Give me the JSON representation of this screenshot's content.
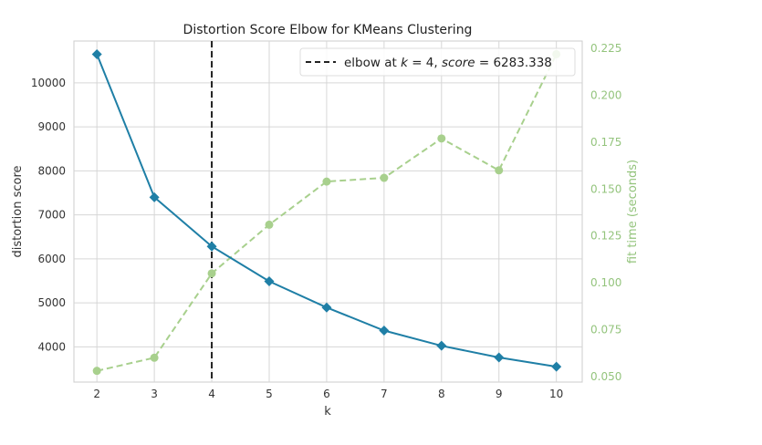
{
  "chart_data": {
    "type": "line",
    "title": "Distortion Score Elbow for KMeans Clustering",
    "xlabel": "k",
    "ylabel": "distortion score",
    "ylabel_right": "fit time (seconds)",
    "x": [
      2,
      3,
      4,
      5,
      6,
      7,
      8,
      9,
      10
    ],
    "xlim": [
      1.6,
      10.45
    ],
    "ylim": [
      3200,
      10950
    ],
    "ylim_right": [
      0.047,
      0.229
    ],
    "x_ticks": [
      "2",
      "3",
      "4",
      "5",
      "6",
      "7",
      "8",
      "9",
      "10"
    ],
    "y_ticks": [
      "4000",
      "5000",
      "6000",
      "7000",
      "8000",
      "9000",
      "10000"
    ],
    "y_ticks_right": [
      "0.050",
      "0.075",
      "0.100",
      "0.125",
      "0.150",
      "0.175",
      "0.200",
      "0.225"
    ],
    "grid": true,
    "series": [
      {
        "axis": "left",
        "values": [
          10650,
          7400,
          6283.338,
          5490,
          4895,
          4370,
          4025,
          3760,
          3550
        ],
        "color": "#1f7fa6",
        "marker": "diamond",
        "style": "solid"
      },
      {
        "axis": "right",
        "values": [
          0.053,
          0.06,
          0.105,
          0.131,
          0.154,
          0.156,
          0.177,
          0.16,
          0.222
        ],
        "color": "#a8d08d",
        "marker": "circle",
        "style": "dashed"
      }
    ],
    "elbow": {
      "k": 4,
      "score": 6283.338,
      "legend_prefix": "elbow at ",
      "legend_k": "k",
      "legend_eq1": " = 4, ",
      "legend_score": "score",
      "legend_eq2": " = 6283.338",
      "color": "#222222",
      "style": "dashed"
    },
    "legend_placement": "top-right"
  }
}
